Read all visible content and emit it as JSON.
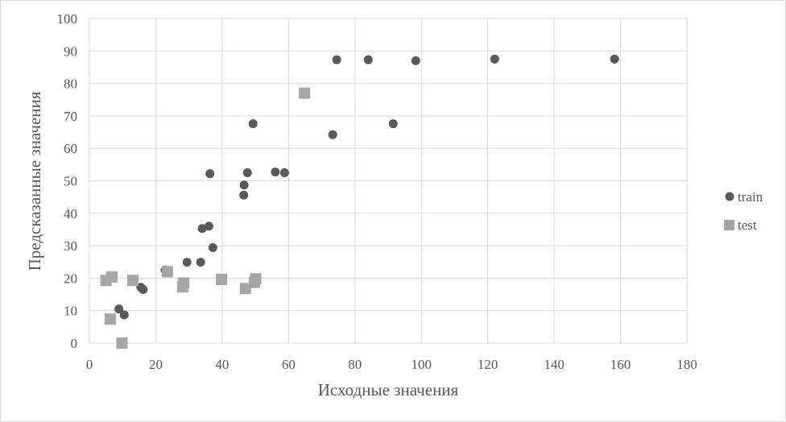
{
  "chart_data": {
    "type": "scatter",
    "title": "",
    "xlabel": "Исходные значения",
    "ylabel": "Предсказанные значения",
    "xlim": [
      0,
      180
    ],
    "ylim": [
      0,
      100
    ],
    "x_ticks": [
      0,
      20,
      40,
      60,
      80,
      100,
      120,
      140,
      160,
      180
    ],
    "y_ticks": [
      0,
      10,
      20,
      30,
      40,
      50,
      60,
      70,
      80,
      90,
      100
    ],
    "grid": true,
    "legend_position": "right",
    "series": [
      {
        "name": "train",
        "marker": "circle",
        "color": "#595959",
        "points": [
          [
            74.5,
            87.3
          ],
          [
            84,
            87.3
          ],
          [
            98.3,
            87.0
          ],
          [
            122.1,
            87.5
          ],
          [
            158.2,
            87.5
          ],
          [
            49.3,
            67.6
          ],
          [
            91.5,
            67.6
          ],
          [
            73.3,
            64.2
          ],
          [
            36.3,
            52.2
          ],
          [
            47.6,
            52.5
          ],
          [
            56,
            52.7
          ],
          [
            58.8,
            52.5
          ],
          [
            46.6,
            48.7
          ],
          [
            46.5,
            45.6
          ],
          [
            34,
            35.3
          ],
          [
            36,
            36
          ],
          [
            37.2,
            29.4
          ],
          [
            29.4,
            24.9
          ],
          [
            33.5,
            24.9
          ],
          [
            22.8,
            22.5
          ],
          [
            15.5,
            17.2
          ],
          [
            16.2,
            16.5
          ],
          [
            8.9,
            10.5
          ],
          [
            10.5,
            8.7
          ]
        ]
      },
      {
        "name": "test",
        "marker": "square",
        "color": "#a6a6a6",
        "points": [
          [
            64.8,
            77.0
          ],
          [
            5,
            19.3
          ],
          [
            6.8,
            20.4
          ],
          [
            13.1,
            19.3
          ],
          [
            23.5,
            22
          ],
          [
            28.1,
            17.3
          ],
          [
            28.4,
            18.5
          ],
          [
            39.8,
            19.6
          ],
          [
            47,
            16.8
          ],
          [
            49.7,
            18.7
          ],
          [
            50.1,
            19.8
          ],
          [
            6.3,
            7.4
          ],
          [
            9.8,
            0
          ]
        ]
      }
    ]
  }
}
